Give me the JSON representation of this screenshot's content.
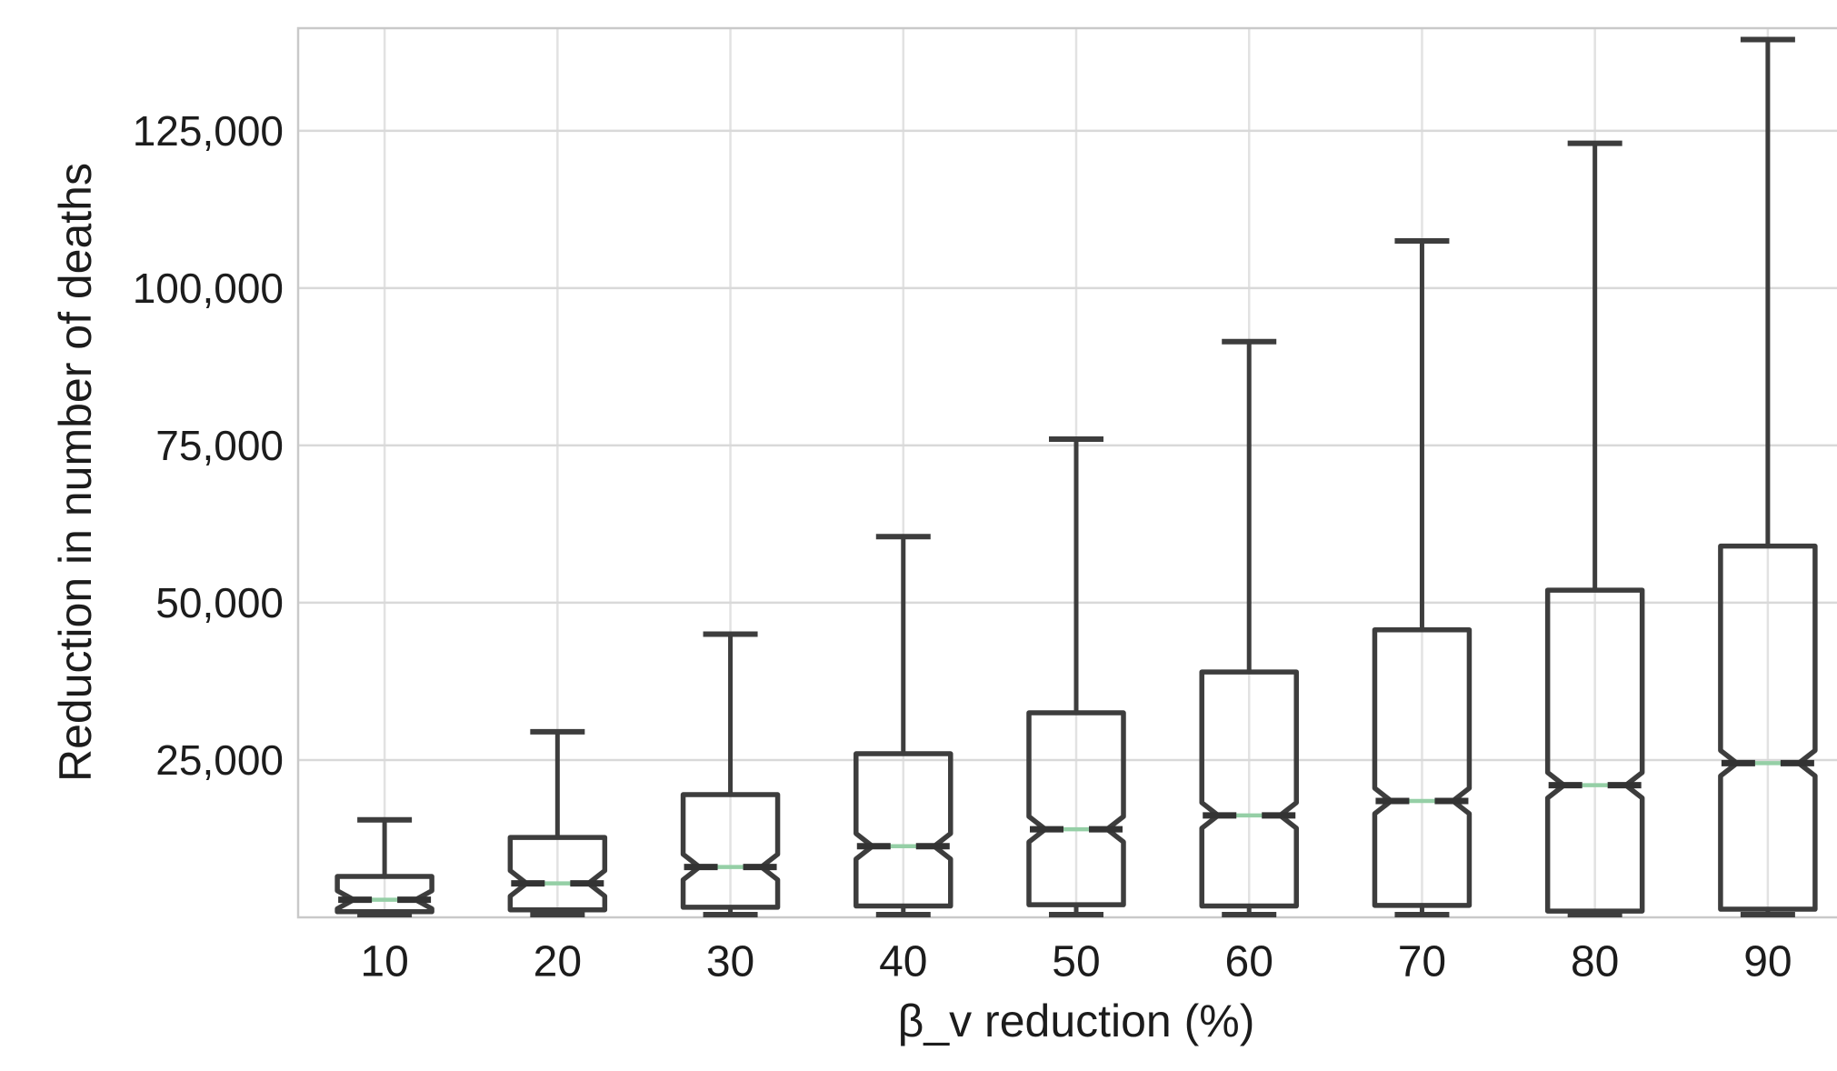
{
  "chart_data": {
    "type": "box",
    "notched": true,
    "title": "",
    "xlabel": "β_v reduction (%)",
    "ylabel": "Reduction in number of deaths",
    "categories": [
      "10",
      "20",
      "30",
      "40",
      "50",
      "60",
      "70",
      "80",
      "90"
    ],
    "series": [
      {
        "category": "10",
        "min": 0,
        "q1": 900,
        "median": 2800,
        "q3": 6500,
        "max": 15500
      },
      {
        "category": "20",
        "min": 0,
        "q1": 1200,
        "median": 5400,
        "q3": 12700,
        "max": 29500
      },
      {
        "category": "30",
        "min": 0,
        "q1": 1600,
        "median": 8000,
        "q3": 19500,
        "max": 45000
      },
      {
        "category": "40",
        "min": 0,
        "q1": 1800,
        "median": 11300,
        "q3": 26000,
        "max": 60500
      },
      {
        "category": "50",
        "min": 0,
        "q1": 2000,
        "median": 14000,
        "q3": 32500,
        "max": 76000
      },
      {
        "category": "60",
        "min": 0,
        "q1": 1800,
        "median": 16200,
        "q3": 39000,
        "max": 91500
      },
      {
        "category": "70",
        "min": 0,
        "q1": 1900,
        "median": 18500,
        "q3": 45700,
        "max": 107500
      },
      {
        "category": "80",
        "min": 0,
        "q1": 1000,
        "median": 21000,
        "q3": 52000,
        "max": 123000
      },
      {
        "category": "90",
        "min": 0,
        "q1": 1300,
        "median": 24500,
        "q3": 59000,
        "max": 139500
      }
    ],
    "ylim": [
      0,
      141300
    ],
    "yticks": [
      25000,
      50000,
      75000,
      100000,
      125000
    ],
    "ytick_labels": [
      "25,000",
      "50,000",
      "75,000",
      "100,000",
      "125,000"
    ],
    "grid": true,
    "legend": "none",
    "colors": {
      "box_edge": "#3d3d3d",
      "whisker": "#3d3d3d",
      "median_line": "#95cfa6",
      "median_ends": "#333333",
      "gridline": "#d9d9d9",
      "gridline_vertical": "#e2e2e2",
      "plot_border": "#c9c9c9",
      "text": "#1c1c1c",
      "background": "#ffffff"
    }
  }
}
